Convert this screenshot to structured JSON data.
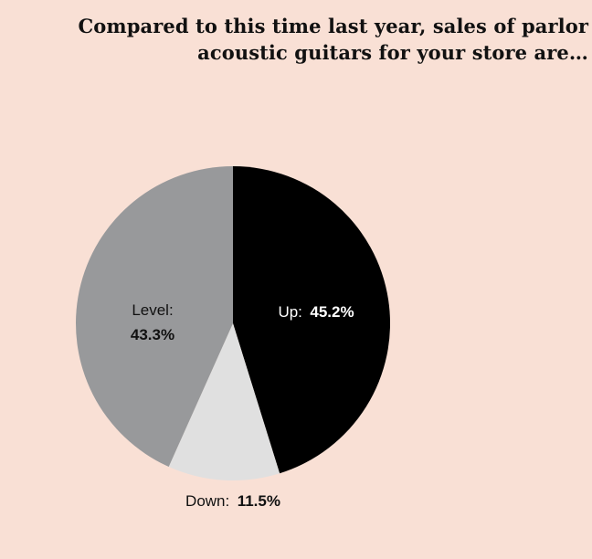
{
  "title_lines": [
    "Compared to this time last year, sales of parlor",
    "acoustic guitars for your store are…"
  ],
  "chart_data": {
    "type": "pie",
    "title": "Compared to this time last year, sales of parlor acoustic guitars for your store are…",
    "slices": [
      {
        "label": "Up:",
        "value": 45.2,
        "value_text": "45.2%",
        "color": "#000000",
        "text_color": "#ffffff"
      },
      {
        "label": "Down:",
        "value": 11.5,
        "value_text": "11.5%",
        "color": "#e0e0e0",
        "text_color": "#111111"
      },
      {
        "label": "Level:",
        "value": 43.3,
        "value_text": "43.3%",
        "color": "#98999b",
        "text_color": "#111111"
      }
    ]
  }
}
